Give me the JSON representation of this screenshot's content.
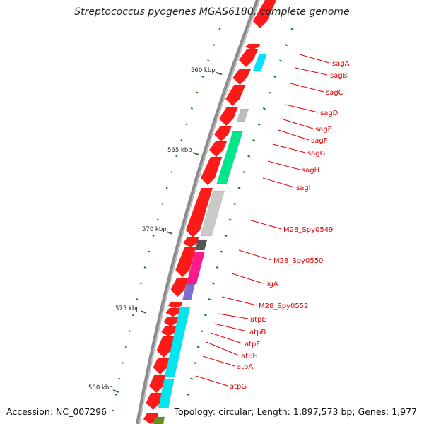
{
  "title": "Streptococcus pyogenes MGAS6180, complete genome",
  "accession": "Accession: NC_007296",
  "summary": "Topology: circular; Length: 1,897,573 bp; Genes: 1,977",
  "colors": {
    "backbone": "#8c8c8c",
    "cds_forward": "#ff1a1a",
    "tick": "#1f7a1f",
    "label": "#e60000",
    "sag_b": "#00e5ff",
    "sag_e": "#bdbdbd",
    "sag_g": "#00e68a",
    "m28_0549": "#c9c9c9",
    "m28_0550": "#555555",
    "m28_0552": "#ff1a8c",
    "lig_a": "#7d6fd1",
    "atp": "#00e5ee",
    "bottom_green": "#6b8e23"
  },
  "scale": {
    "unit": "kbp",
    "ticks": [
      {
        "label": "560 kbp"
      },
      {
        "label": "565 kbp"
      },
      {
        "label": "570 kbp"
      },
      {
        "label": "575 kbp"
      },
      {
        "label": "580 kbp"
      }
    ]
  },
  "genes": [
    {
      "name": "sagA"
    },
    {
      "name": "sagB"
    },
    {
      "name": "sagC"
    },
    {
      "name": "sagD"
    },
    {
      "name": "sagE"
    },
    {
      "name": "sagF"
    },
    {
      "name": "sagG"
    },
    {
      "name": "sagH"
    },
    {
      "name": "sagI"
    },
    {
      "name": "M28_Spy0549"
    },
    {
      "name": "M28_Spy0550"
    },
    {
      "name": "ligA"
    },
    {
      "name": "M28_Spy0552"
    },
    {
      "name": "atpE"
    },
    {
      "name": "atpB"
    },
    {
      "name": "atpF"
    },
    {
      "name": "atpH"
    },
    {
      "name": "atpA"
    },
    {
      "name": "atpG"
    }
  ]
}
